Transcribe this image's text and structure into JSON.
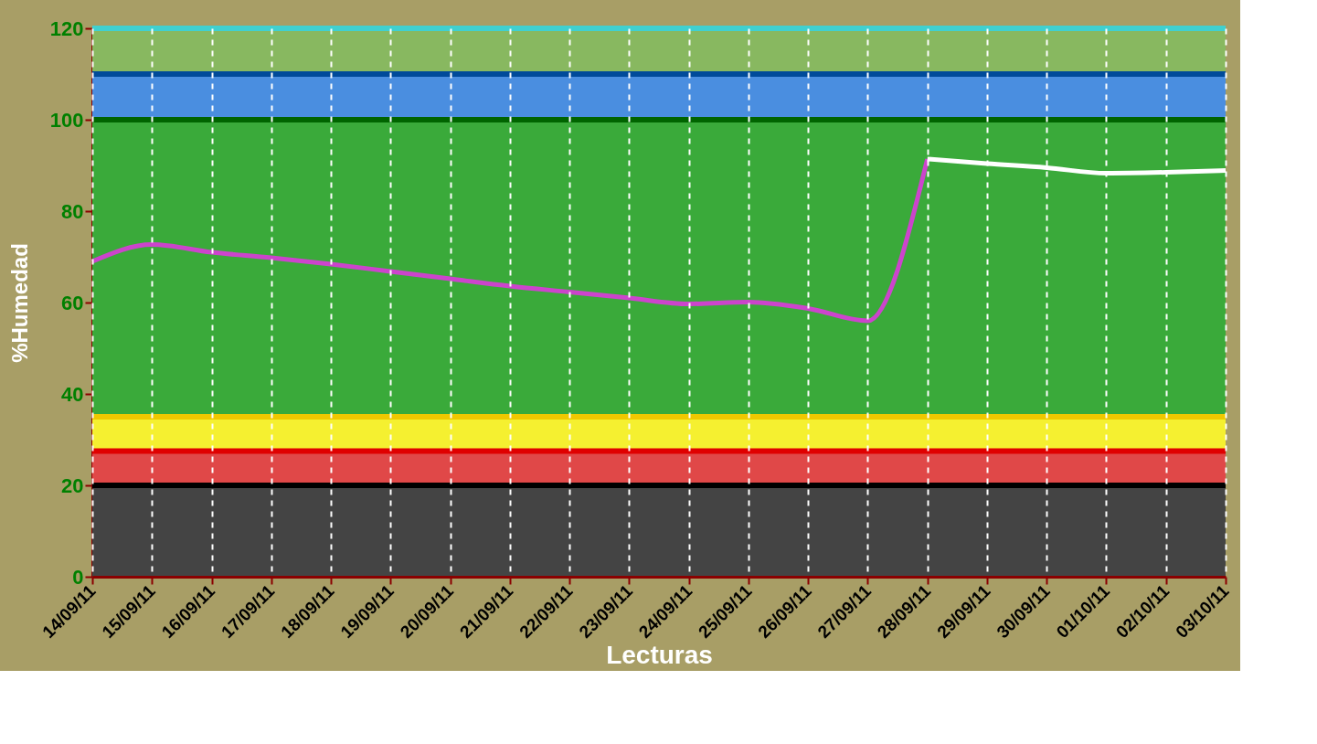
{
  "chart_data": {
    "type": "line",
    "xlabel": "Lecturas",
    "ylabel": "%Humedad",
    "categories": [
      "14/09/11",
      "15/09/11",
      "16/09/11",
      "17/09/11",
      "18/09/11",
      "19/09/11",
      "20/09/11",
      "21/09/11",
      "22/09/11",
      "23/09/11",
      "24/09/11",
      "25/09/11",
      "26/09/11",
      "27/09/11",
      "28/09/11",
      "29/09/11",
      "30/09/11",
      "01/10/11",
      "02/10/11",
      "03/10/11"
    ],
    "series": [
      {
        "color": "#cc44cc",
        "values": [
          69,
          72.7,
          71,
          69.8,
          68.4,
          66.8,
          65.2,
          63.6,
          62.3,
          61,
          59.7,
          60.1,
          58.7,
          56,
          91.4,
          null,
          null,
          null,
          null,
          null
        ]
      },
      {
        "color": "#ffffff",
        "values": [
          null,
          null,
          null,
          null,
          null,
          null,
          null,
          null,
          null,
          null,
          null,
          null,
          null,
          null,
          91.4,
          90.4,
          89.5,
          88.3,
          88.5,
          88.9
        ]
      }
    ],
    "ylim": [
      0,
      120
    ],
    "yticks": [
      0,
      20,
      40,
      60,
      80,
      100,
      120
    ],
    "bands": [
      {
        "axis": "y",
        "from": 0,
        "to": 20,
        "color": "#444444"
      },
      {
        "axis": "y",
        "from": 20,
        "to": 27.5,
        "color": "#e04848"
      },
      {
        "axis": "y",
        "from": 27.5,
        "to": 35,
        "color": "#f5f030"
      },
      {
        "axis": "y",
        "from": 35,
        "to": 100,
        "color": "#3aaa3a"
      },
      {
        "axis": "y",
        "from": 100,
        "to": 110,
        "color": "#4a8ee0"
      },
      {
        "axis": "y",
        "from": 110,
        "to": 120,
        "color": "#88b860"
      }
    ],
    "ref_lines": [
      {
        "axis": "y",
        "value": 20,
        "color": "#000000"
      },
      {
        "axis": "y",
        "value": 27.5,
        "color": "#e00000"
      },
      {
        "axis": "y",
        "value": 35,
        "color": "#f0c800"
      },
      {
        "axis": "y",
        "value": 100,
        "color": "#006400"
      },
      {
        "axis": "y",
        "value": 110,
        "color": "#004a9a"
      },
      {
        "axis": "y",
        "value": 120,
        "color": "#40d0d0"
      }
    ],
    "grid": "x",
    "marker": "none",
    "line_style": "solid"
  }
}
